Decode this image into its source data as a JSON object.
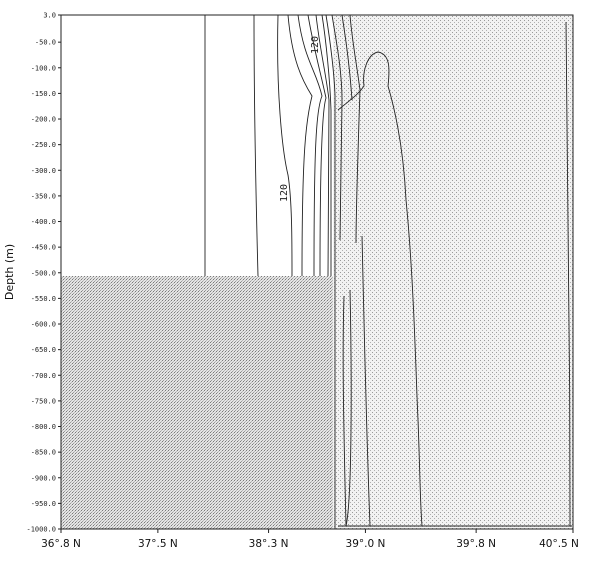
{
  "chart_data": {
    "type": "contour",
    "title": "",
    "ylabel": "Depth (m)",
    "xlabel": "",
    "x_ticks": [
      "36°.8 N",
      "37°.5 N",
      "38°.3 N",
      "39°.0 N",
      "39°.8 N",
      "40°.5 N"
    ],
    "x_tick_values": [
      36.8,
      37.5,
      38.3,
      39.0,
      39.8,
      40.5
    ],
    "y_ticks": [
      "3.0",
      "-50.0",
      "-100.0",
      "-150.0",
      "-200.0",
      "-250.0",
      "-300.0",
      "-350.0",
      "-400.0",
      "-450.0",
      "-500.0",
      "-550.0",
      "-600.0",
      "-650.0",
      "-700.0",
      "-750.0",
      "-800.0",
      "-850.0",
      "-900.0",
      "-950.0",
      "-1000.0"
    ],
    "y_tick_values": [
      3,
      -50,
      -100,
      -150,
      -200,
      -250,
      -300,
      -350,
      -400,
      -450,
      -500,
      -550,
      -600,
      -650,
      -700,
      -750,
      -800,
      -850,
      -900,
      -950,
      -1000
    ],
    "xlim": [
      36.8,
      40.5
    ],
    "ylim": [
      -1000,
      3
    ],
    "grid": false,
    "contour_labels": [
      "120",
      "120"
    ],
    "shaded_regions": [
      {
        "name": "seafloor",
        "x_range": [
          36.8,
          38.75
        ],
        "depth_range": [
          -480,
          -1000
        ]
      },
      {
        "name": "stippled zone",
        "x_range": [
          38.75,
          40.5
        ],
        "depth_range": [
          3,
          -1000
        ]
      }
    ]
  }
}
